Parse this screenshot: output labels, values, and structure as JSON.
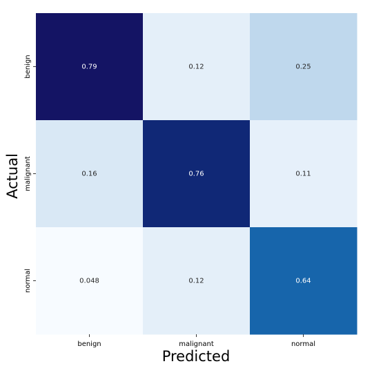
{
  "chart_data": {
    "type": "heatmap",
    "title": "",
    "xlabel": "Predicted",
    "ylabel": "Actual",
    "x_categories": [
      "benign",
      "malignant",
      "normal"
    ],
    "y_categories": [
      "benign",
      "malignant",
      "normal"
    ],
    "values": [
      [
        0.79,
        0.12,
        0.25
      ],
      [
        0.16,
        0.76,
        0.11
      ],
      [
        0.048,
        0.12,
        0.64
      ]
    ],
    "value_labels": [
      [
        "0.79",
        "0.12",
        "0.25"
      ],
      [
        "0.16",
        "0.76",
        "0.11"
      ],
      [
        "0.048",
        "0.12",
        "0.64"
      ]
    ],
    "colormap": "Blues",
    "colorbar": false,
    "grid": false
  }
}
